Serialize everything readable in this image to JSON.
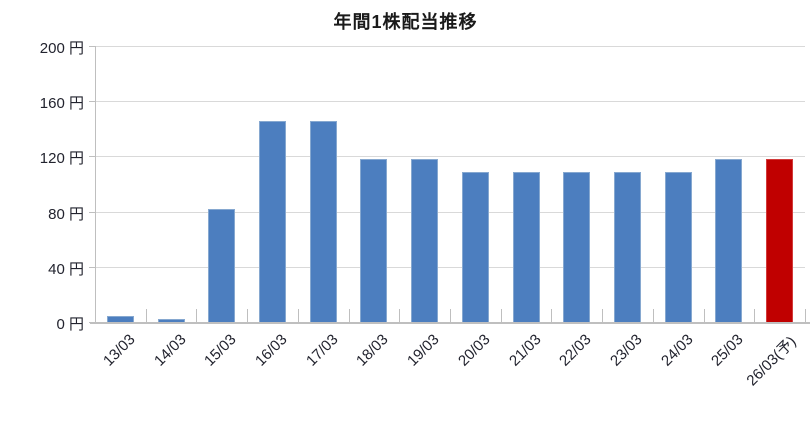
{
  "chart_data": {
    "type": "bar",
    "title": "年間1株配当推移",
    "categories": [
      "13/03",
      "14/03",
      "15/03",
      "16/03",
      "17/03",
      "18/03",
      "19/03",
      "20/03",
      "21/03",
      "22/03",
      "23/03",
      "24/03",
      "25/03",
      "26/03(予)"
    ],
    "values": [
      4,
      2,
      82,
      146,
      146,
      118,
      118,
      109,
      109,
      109,
      109,
      109,
      118,
      118
    ],
    "unit": "円",
    "ylabel": "",
    "xlabel": "",
    "ylim": [
      0,
      200
    ],
    "y_tick_interval": 40,
    "y_tick_labels": [
      "200 円",
      "160 円",
      "120 円",
      "80 円",
      "40 円",
      "0 円"
    ],
    "grid": true,
    "legend_position": "none",
    "colors": {
      "bar": "#4c7ebf",
      "bar_border": "#86a8d0",
      "forecast_bar": "#c00000",
      "gridline": "#d9d9d9",
      "axis": "#bfbfbf",
      "title_text": "#1a1a1a",
      "tick_text": "#22232e",
      "background": "#ffffff"
    },
    "forecast_index": 13
  }
}
